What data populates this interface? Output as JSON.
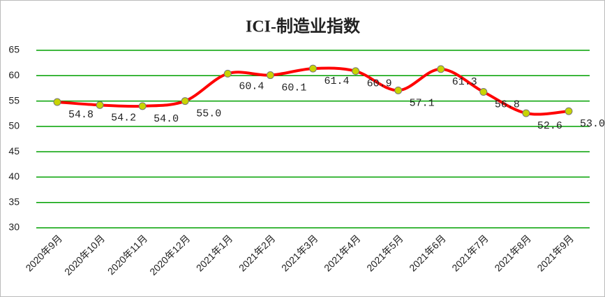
{
  "chart_data": {
    "type": "line",
    "title": "ICI-制造业指数",
    "categories": [
      "2020年9月",
      "2020年10月",
      "2020年11月",
      "2020年12月",
      "2021年1月",
      "2021年2月",
      "2021年3月",
      "2021年4月",
      "2021年5月",
      "2021年6月",
      "2021年7月",
      "2021年8月",
      "2021年9月"
    ],
    "series": [
      {
        "name": "ICI-制造业指数",
        "color": "#ff0000",
        "values": [
          54.8,
          54.2,
          54.0,
          55.0,
          60.4,
          60.1,
          61.4,
          60.9,
          57.1,
          61.3,
          56.8,
          52.6,
          53.0
        ],
        "value_labels": [
          "54.8",
          "54.2",
          "54.0",
          "55.0",
          "60.4",
          "60.1",
          "61.4",
          "60.9",
          "57.1",
          "61.3",
          "56.8",
          "52.6",
          "53.0"
        ]
      }
    ],
    "ylim": [
      30,
      65
    ],
    "yticks": [
      30,
      35,
      40,
      45,
      50,
      55,
      60,
      65
    ],
    "grid": true,
    "grid_color": "#00a000",
    "marker_color": "#c8d400"
  }
}
